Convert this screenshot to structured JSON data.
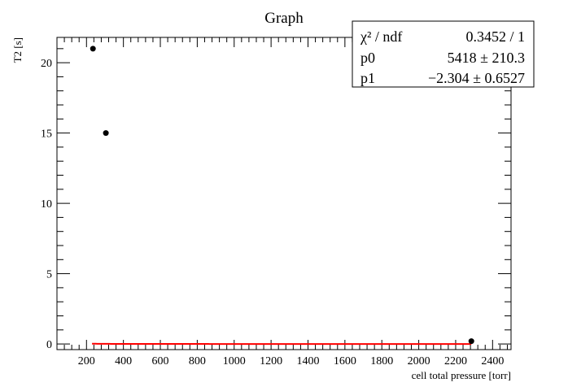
{
  "chart_data": {
    "type": "scatter",
    "title": "Graph",
    "xlabel": "cell total pressure [torr]",
    "ylabel": "T2 [s]",
    "xlim": [
      40,
      2500
    ],
    "ylim": [
      -0.4,
      21.8
    ],
    "xticks": [
      200,
      400,
      600,
      800,
      1000,
      1200,
      1400,
      1600,
      1800,
      2000,
      2200,
      2400
    ],
    "yticks": [
      0,
      5,
      10,
      15,
      20
    ],
    "grid": false,
    "series": [
      {
        "type": "scatter",
        "x": [
          235,
          305,
          2285
        ],
        "y": [
          21.0,
          15.0,
          0.2
        ],
        "color": "#000000"
      }
    ],
    "fit": {
      "color": "#ff0000",
      "p0": 5418,
      "p1": -2.304,
      "x_range": [
        230,
        2285
      ]
    },
    "stats_box": {
      "position": "top-right",
      "rows": [
        {
          "label": "χ² / ndf",
          "value": "0.3452 / 1"
        },
        {
          "label": "p0",
          "value": "5418 ± 210.3"
        },
        {
          "label": "p1",
          "value": "−2.304 ± 0.6527"
        }
      ]
    }
  }
}
